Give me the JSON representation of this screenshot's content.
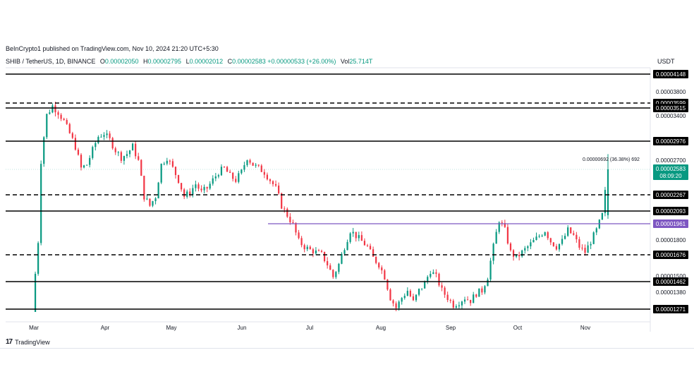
{
  "header": {
    "publisher": "BeInCrypto1 published on TradingView.com, Nov 10, 2024 21:20 UTC+5:30",
    "symbol": "SHIB / TetherUS, 1D, BINANCE",
    "o_label": "O",
    "o_value": "0.00002050",
    "h_label": "H",
    "h_value": "0.00002795",
    "l_label": "L",
    "l_value": "0.00002012",
    "c_label": "C",
    "c_value": "0.00002583",
    "change": "+0.00000533 (+26.00%)",
    "vol_label": "Vol",
    "vol_value": "25.714T",
    "currency": "USDT"
  },
  "footer": {
    "brand": "TradingView"
  },
  "colors": {
    "up": "#089981",
    "down": "#f23645",
    "support_purple": "#7e57c2",
    "price_tag": "#089981"
  },
  "chart_data": {
    "type": "candlestick",
    "x_labels": [
      "Mar",
      "Apr",
      "May",
      "Jun",
      "Jul",
      "Aug",
      "Sep",
      "Oct",
      "Nov"
    ],
    "y_ticks": [
      "0.00003800",
      "0.00003400",
      "0.00002700",
      "0.00001800",
      "0.00001500",
      "0.00001380"
    ],
    "horizontal_levels": [
      {
        "value": 4.148e-05,
        "label": "0.00004148",
        "style": "solid",
        "color": "#000000"
      },
      {
        "value": 3.599e-05,
        "label": "0.00003599",
        "style": "dashed",
        "color": "#000000"
      },
      {
        "value": 3.515e-05,
        "label": "0.00003515",
        "style": "solid",
        "color": "#000000"
      },
      {
        "value": 2.976e-05,
        "label": "0.00002976",
        "style": "solid",
        "color": "#000000"
      },
      {
        "value": 2.267e-05,
        "label": "0.00002267",
        "style": "dashed",
        "color": "#000000"
      },
      {
        "value": 2.093e-05,
        "label": "0.00002093",
        "style": "solid",
        "color": "#000000"
      },
      {
        "value": 1.961e-05,
        "label": "0.00001961",
        "style": "solid",
        "color": "#7e57c2"
      },
      {
        "value": 1.676e-05,
        "label": "0.00001676",
        "style": "dashed",
        "color": "#000000"
      },
      {
        "value": 1.462e-05,
        "label": "0.00001462",
        "style": "solid",
        "color": "#000000"
      },
      {
        "value": 1.271e-05,
        "label": "0.00001271",
        "style": "solid",
        "color": "#000000"
      }
    ],
    "last_price": {
      "value": 2.583e-05,
      "label": "0.00002583",
      "countdown": "08:09:20"
    },
    "measure_annotation": "0.00000692 (36.38%) 692",
    "close_path": [
      [
        0,
        1.25e-05
      ],
      [
        2,
        1.8e-05
      ],
      [
        3,
        2.7e-05
      ],
      [
        5,
        3.4e-05
      ],
      [
        7,
        3.55e-05
      ],
      [
        9,
        3.45e-05
      ],
      [
        11,
        3.3e-05
      ],
      [
        13,
        3.1e-05
      ],
      [
        15,
        2.9e-05
      ],
      [
        17,
        2.6e-05
      ],
      [
        19,
        2.65e-05
      ],
      [
        21,
        2.85e-05
      ],
      [
        23,
        3.05e-05
      ],
      [
        25,
        3.1e-05
      ],
      [
        27,
        3e-05
      ],
      [
        29,
        2.85e-05
      ],
      [
        31,
        2.75e-05
      ],
      [
        33,
        2.8e-05
      ],
      [
        35,
        2.9e-05
      ],
      [
        37,
        2.7e-05
      ],
      [
        39,
        2.25e-05
      ],
      [
        41,
        2.15e-05
      ],
      [
        43,
        2.25e-05
      ],
      [
        45,
        2.65e-05
      ],
      [
        47,
        2.75e-05
      ],
      [
        49,
        2.6e-05
      ],
      [
        51,
        2.45e-05
      ],
      [
        53,
        2.25e-05
      ],
      [
        55,
        2.3e-05
      ],
      [
        57,
        2.4e-05
      ],
      [
        59,
        2.3e-05
      ],
      [
        61,
        2.35e-05
      ],
      [
        63,
        2.45e-05
      ],
      [
        65,
        2.55e-05
      ],
      [
        67,
        2.6e-05
      ],
      [
        69,
        2.5e-05
      ],
      [
        71,
        2.45e-05
      ],
      [
        73,
        2.55e-05
      ],
      [
        75,
        2.75e-05
      ],
      [
        77,
        2.65e-05
      ],
      [
        79,
        2.6e-05
      ],
      [
        81,
        2.55e-05
      ],
      [
        83,
        2.45e-05
      ],
      [
        85,
        2.35e-05
      ],
      [
        87,
        2.15e-05
      ],
      [
        89,
        2.05e-05
      ],
      [
        91,
        1.95e-05
      ],
      [
        93,
        1.8e-05
      ],
      [
        95,
        1.75e-05
      ],
      [
        97,
        1.72e-05
      ],
      [
        99,
        1.7e-05
      ],
      [
        101,
        1.68e-05
      ],
      [
        103,
        1.6e-05
      ],
      [
        105,
        1.5e-05
      ],
      [
        107,
        1.6e-05
      ],
      [
        109,
        1.75e-05
      ],
      [
        111,
        1.9e-05
      ],
      [
        113,
        1.85e-05
      ],
      [
        115,
        1.8e-05
      ],
      [
        117,
        1.75e-05
      ],
      [
        119,
        1.65e-05
      ],
      [
        121,
        1.6e-05
      ],
      [
        123,
        1.5e-05
      ],
      [
        125,
        1.35e-05
      ],
      [
        127,
        1.28e-05
      ],
      [
        129,
        1.35e-05
      ],
      [
        131,
        1.4e-05
      ],
      [
        133,
        1.32e-05
      ],
      [
        135,
        1.4e-05
      ],
      [
        137,
        1.45e-05
      ],
      [
        139,
        1.55e-05
      ],
      [
        141,
        1.5e-05
      ],
      [
        143,
        1.4e-05
      ],
      [
        145,
        1.35e-05
      ],
      [
        147,
        1.3e-05
      ],
      [
        149,
        1.32e-05
      ],
      [
        151,
        1.35e-05
      ],
      [
        153,
        1.33e-05
      ],
      [
        155,
        1.38e-05
      ],
      [
        157,
        1.4e-05
      ],
      [
        159,
        1.5e-05
      ],
      [
        161,
        1.75e-05
      ],
      [
        163,
        2e-05
      ],
      [
        165,
        1.9e-05
      ],
      [
        167,
        1.7e-05
      ],
      [
        169,
        1.65e-05
      ],
      [
        171,
        1.7e-05
      ],
      [
        173,
        1.75e-05
      ],
      [
        175,
        1.8e-05
      ],
      [
        177,
        1.85e-05
      ],
      [
        179,
        1.9e-05
      ],
      [
        181,
        1.8e-05
      ],
      [
        183,
        1.75e-05
      ],
      [
        185,
        1.8e-05
      ],
      [
        187,
        1.9e-05
      ],
      [
        189,
        1.85e-05
      ],
      [
        191,
        1.75e-05
      ],
      [
        193,
        1.7e-05
      ],
      [
        195,
        1.8e-05
      ],
      [
        197,
        1.9e-05
      ],
      [
        199,
        2.05e-05
      ],
      [
        200,
        2.3e-05
      ],
      [
        201,
        2.58e-05
      ]
    ],
    "total_days": 254
  }
}
